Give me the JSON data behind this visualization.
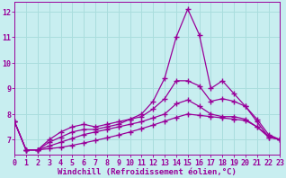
{
  "title": "",
  "xlabel": "Windchill (Refroidissement éolien,°C)",
  "ylabel": "",
  "background_color": "#c8eef0",
  "line_color": "#990099",
  "grid_color": "#aadddd",
  "x": [
    0,
    1,
    2,
    3,
    4,
    5,
    6,
    7,
    8,
    9,
    10,
    11,
    12,
    13,
    14,
    15,
    16,
    17,
    18,
    19,
    20,
    21,
    22,
    23
  ],
  "curves": [
    [
      7.7,
      6.6,
      6.6,
      7.0,
      7.3,
      7.5,
      7.6,
      7.5,
      7.6,
      7.7,
      7.8,
      8.0,
      8.5,
      9.4,
      11.0,
      12.1,
      11.1,
      9.0,
      9.3,
      8.8,
      8.3,
      7.7,
      7.1,
      7.0
    ],
    [
      7.7,
      6.6,
      6.6,
      6.9,
      7.1,
      7.3,
      7.4,
      7.4,
      7.5,
      7.6,
      7.8,
      7.9,
      8.2,
      8.6,
      9.3,
      9.3,
      9.1,
      8.5,
      8.6,
      8.5,
      8.3,
      7.8,
      7.2,
      7.0
    ],
    [
      7.7,
      6.6,
      6.6,
      6.75,
      6.9,
      7.05,
      7.2,
      7.3,
      7.4,
      7.5,
      7.6,
      7.7,
      7.85,
      8.0,
      8.4,
      8.55,
      8.3,
      8.0,
      7.9,
      7.9,
      7.8,
      7.5,
      7.15,
      7.0
    ],
    [
      7.7,
      6.6,
      6.6,
      6.65,
      6.7,
      6.78,
      6.87,
      6.97,
      7.07,
      7.18,
      7.3,
      7.43,
      7.57,
      7.72,
      7.87,
      8.0,
      7.95,
      7.9,
      7.85,
      7.8,
      7.75,
      7.5,
      7.1,
      7.0
    ]
  ],
  "xlim": [
    0,
    23
  ],
  "ylim": [
    6.4,
    12.4
  ],
  "yticks": [
    7,
    8,
    9,
    10,
    11,
    12
  ],
  "xticks": [
    0,
    1,
    2,
    3,
    4,
    5,
    6,
    7,
    8,
    9,
    10,
    11,
    12,
    13,
    14,
    15,
    16,
    17,
    18,
    19,
    20,
    21,
    22,
    23
  ],
  "marker": "+",
  "markersize": 5,
  "linewidth": 0.9,
  "xlabel_fontsize": 6.5,
  "tick_fontsize": 6,
  "figwidth": 3.2,
  "figheight": 2.0,
  "dpi": 100
}
